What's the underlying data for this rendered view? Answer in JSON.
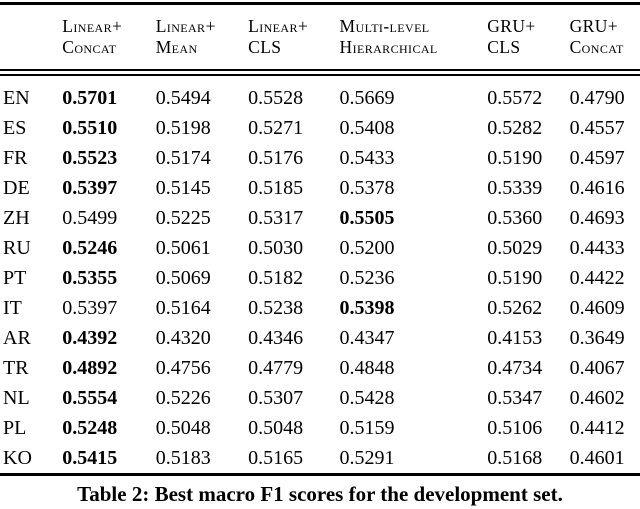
{
  "page": {
    "background_color": "#ffffff",
    "text_color": "#000000"
  },
  "table": {
    "header": {
      "columns": [
        {
          "line1": "Linear+",
          "line2": "Concat"
        },
        {
          "line1": "Linear+",
          "line2": "Mean"
        },
        {
          "line1": "Linear+",
          "line2": "CLS"
        },
        {
          "line1": "Multi-level",
          "line2": "Hierarchical"
        },
        {
          "line1": "GRU+",
          "line2": "CLS"
        },
        {
          "line1": "GRU+",
          "line2": "Concat"
        }
      ]
    },
    "rows": [
      {
        "label": "EN",
        "values": [
          "0.5701",
          "0.5494",
          "0.5528",
          "0.5669",
          "0.5572",
          "0.4790"
        ],
        "bold_value_index": 0
      },
      {
        "label": "ES",
        "values": [
          "0.5510",
          "0.5198",
          "0.5271",
          "0.5408",
          "0.5282",
          "0.4557"
        ],
        "bold_value_index": 0
      },
      {
        "label": "FR",
        "values": [
          "0.5523",
          "0.5174",
          "0.5176",
          "0.5433",
          "0.5190",
          "0.4597"
        ],
        "bold_value_index": 0
      },
      {
        "label": "DE",
        "values": [
          "0.5397",
          "0.5145",
          "0.5185",
          "0.5378",
          "0.5339",
          "0.4616"
        ],
        "bold_value_index": 0
      },
      {
        "label": "ZH",
        "values": [
          "0.5499",
          "0.5225",
          "0.5317",
          "0.5505",
          "0.5360",
          "0.4693"
        ],
        "bold_value_index": 3
      },
      {
        "label": "RU",
        "values": [
          "0.5246",
          "0.5061",
          "0.5030",
          "0.5200",
          "0.5029",
          "0.4433"
        ],
        "bold_value_index": 0
      },
      {
        "label": "PT",
        "values": [
          "0.5355",
          "0.5069",
          "0.5182",
          "0.5236",
          "0.5190",
          "0.4422"
        ],
        "bold_value_index": 0
      },
      {
        "label": "IT",
        "values": [
          "0.5397",
          "0.5164",
          "0.5238",
          "0.5398",
          "0.5262",
          "0.4609"
        ],
        "bold_value_index": 3
      },
      {
        "label": "AR",
        "values": [
          "0.4392",
          "0.4320",
          "0.4346",
          "0.4347",
          "0.4153",
          "0.3649"
        ],
        "bold_value_index": 0
      },
      {
        "label": "TR",
        "values": [
          "0.4892",
          "0.4756",
          "0.4779",
          "0.4848",
          "0.4734",
          "0.4067"
        ],
        "bold_value_index": 0
      },
      {
        "label": "NL",
        "values": [
          "0.5554",
          "0.5226",
          "0.5307",
          "0.5428",
          "0.5347",
          "0.4602"
        ],
        "bold_value_index": 0
      },
      {
        "label": "PL",
        "values": [
          "0.5248",
          "0.5048",
          "0.5048",
          "0.5159",
          "0.5106",
          "0.4412"
        ],
        "bold_value_index": 0
      },
      {
        "label": "KO",
        "values": [
          "0.5415",
          "0.5183",
          "0.5165",
          "0.5291",
          "0.5168",
          "0.4601"
        ],
        "bold_value_index": 0
      }
    ]
  },
  "caption": "Table 2: Best macro F1 scores for the development set."
}
